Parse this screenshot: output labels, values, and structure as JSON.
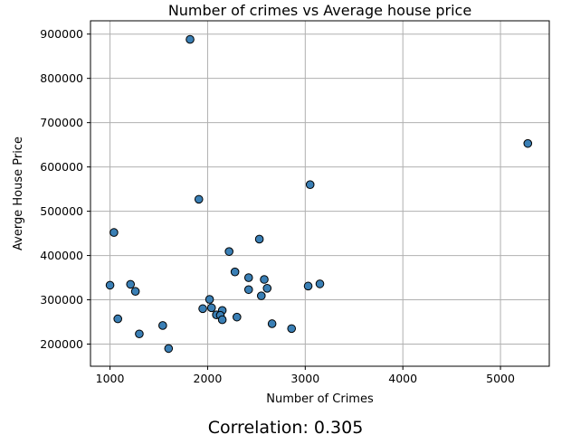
{
  "chart_data": {
    "type": "scatter",
    "title": "Number of crimes vs Average house price",
    "xlabel": "Number of Crimes",
    "ylabel": "Averge House Price",
    "xlim": [
      800,
      5500
    ],
    "ylim": [
      150000,
      930000
    ],
    "xticks": [
      1000,
      2000,
      3000,
      4000,
      5000
    ],
    "yticks": [
      200000,
      300000,
      400000,
      500000,
      600000,
      700000,
      800000,
      900000
    ],
    "grid": true,
    "marker_color": "#3a7fb5",
    "points": [
      {
        "x": 1820,
        "y": 888000
      },
      {
        "x": 5280,
        "y": 653000
      },
      {
        "x": 3050,
        "y": 560000
      },
      {
        "x": 1910,
        "y": 527000
      },
      {
        "x": 1040,
        "y": 452000
      },
      {
        "x": 2530,
        "y": 437000
      },
      {
        "x": 2220,
        "y": 409000
      },
      {
        "x": 2280,
        "y": 363000
      },
      {
        "x": 2420,
        "y": 350000
      },
      {
        "x": 2580,
        "y": 346000
      },
      {
        "x": 3150,
        "y": 336000
      },
      {
        "x": 1210,
        "y": 335000
      },
      {
        "x": 1000,
        "y": 333000
      },
      {
        "x": 3030,
        "y": 331000
      },
      {
        "x": 2610,
        "y": 326000
      },
      {
        "x": 2420,
        "y": 323000
      },
      {
        "x": 1260,
        "y": 319000
      },
      {
        "x": 2550,
        "y": 309000
      },
      {
        "x": 2020,
        "y": 301000
      },
      {
        "x": 2040,
        "y": 282000
      },
      {
        "x": 1950,
        "y": 280000
      },
      {
        "x": 2150,
        "y": 276000
      },
      {
        "x": 2090,
        "y": 266000
      },
      {
        "x": 2130,
        "y": 265000
      },
      {
        "x": 2300,
        "y": 261000
      },
      {
        "x": 1080,
        "y": 257000
      },
      {
        "x": 2150,
        "y": 255000
      },
      {
        "x": 2660,
        "y": 246000
      },
      {
        "x": 1540,
        "y": 242000
      },
      {
        "x": 2860,
        "y": 235000
      },
      {
        "x": 1300,
        "y": 223000
      },
      {
        "x": 1600,
        "y": 190000
      }
    ]
  },
  "caption": "Correlation: 0.305"
}
